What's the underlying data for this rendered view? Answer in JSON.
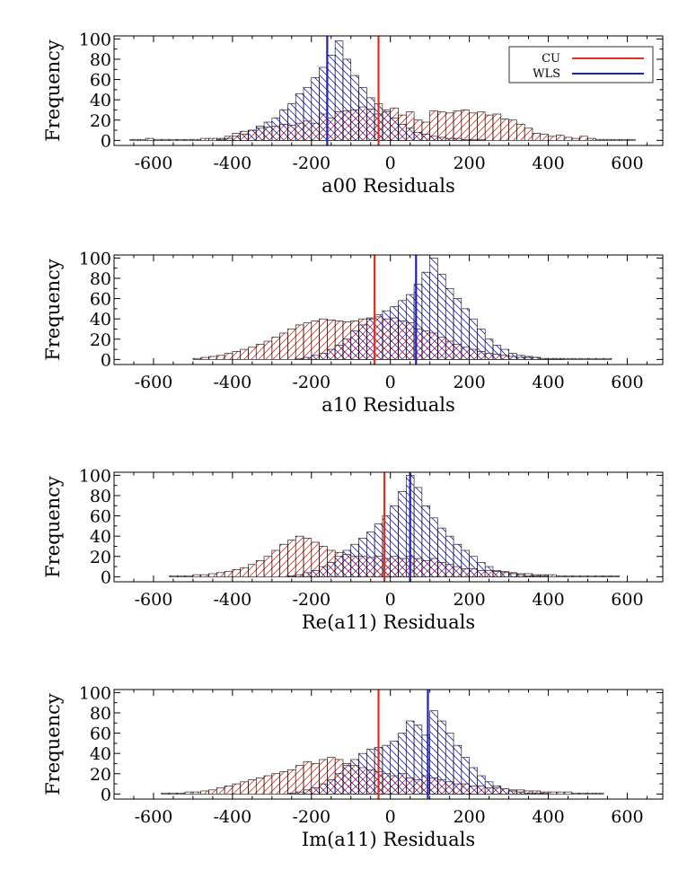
{
  "chart_data": [
    {
      "type": "bar",
      "xlabel": "a00 Residuals",
      "ylabel": "Frequency",
      "xlim": [
        -700,
        690
      ],
      "ylim": [
        -5,
        103
      ],
      "xticks": [
        -600,
        -400,
        -200,
        0,
        200,
        400,
        600
      ],
      "yticks": [
        0,
        20,
        40,
        60,
        80,
        100
      ],
      "bin_start": -660,
      "bin_width": 20,
      "legend": {
        "position": "top-right",
        "entries": [
          "CU",
          "WLS"
        ]
      },
      "series": [
        {
          "name": "CU",
          "color": "#e03020",
          "marker_x": -30,
          "values": [
            1,
            1,
            2,
            1,
            1,
            1,
            1,
            1,
            1,
            2,
            2,
            2,
            4,
            7,
            9,
            10,
            12,
            13,
            14,
            16,
            15,
            17,
            19,
            17,
            26,
            22,
            28,
            29,
            30,
            33,
            31,
            26,
            30,
            32,
            25,
            28,
            20,
            18,
            29,
            28,
            27,
            29,
            30,
            27,
            28,
            25,
            26,
            21,
            20,
            16,
            12,
            7,
            6,
            4,
            5,
            3,
            2,
            4,
            2,
            1,
            1,
            1,
            1,
            1,
            0,
            0
          ]
        },
        {
          "name": "WLS",
          "color": "#2020c0",
          "marker_x": -160,
          "values": [
            0,
            0,
            0,
            0,
            0,
            0,
            0,
            0,
            0,
            0,
            0,
            1,
            2,
            4,
            6,
            10,
            14,
            18,
            22,
            30,
            36,
            46,
            52,
            62,
            72,
            84,
            98,
            80,
            64,
            52,
            42,
            36,
            28,
            22,
            16,
            12,
            8,
            6,
            4,
            3,
            2,
            2,
            1,
            1,
            1,
            0,
            0,
            0,
            0,
            0,
            0,
            0,
            0,
            0,
            0,
            0,
            0,
            0,
            0,
            0,
            0,
            0,
            0,
            0,
            0,
            0
          ]
        }
      ]
    },
    {
      "type": "bar",
      "xlabel": "a10 Residuals",
      "ylabel": "Frequency",
      "xlim": [
        -700,
        690
      ],
      "ylim": [
        -5,
        103
      ],
      "xticks": [
        -600,
        -400,
        -200,
        0,
        200,
        400,
        600
      ],
      "yticks": [
        0,
        20,
        40,
        60,
        80,
        100
      ],
      "bin_start": -660,
      "bin_width": 20,
      "series": [
        {
          "name": "CU",
          "color": "#e03020",
          "marker_x": -40,
          "values": [
            0,
            0,
            0,
            0,
            0,
            0,
            0,
            0,
            1,
            2,
            3,
            4,
            6,
            8,
            10,
            12,
            15,
            18,
            22,
            26,
            30,
            34,
            36,
            38,
            40,
            39,
            38,
            37,
            38,
            40,
            41,
            42,
            40,
            41,
            38,
            36,
            30,
            28,
            26,
            22,
            18,
            15,
            12,
            10,
            8,
            6,
            5,
            4,
            3,
            2,
            2,
            2,
            1,
            1,
            1,
            1,
            1,
            1,
            1,
            1,
            1,
            0,
            0,
            0,
            0,
            0,
            0,
            0
          ]
        },
        {
          "name": "WLS",
          "color": "#2020c0",
          "marker_x": 65,
          "values": [
            0,
            0,
            0,
            0,
            0,
            0,
            0,
            0,
            0,
            0,
            0,
            0,
            0,
            0,
            0,
            0,
            0,
            0,
            0,
            0,
            0,
            1,
            2,
            4,
            6,
            10,
            14,
            20,
            28,
            34,
            40,
            44,
            48,
            52,
            58,
            64,
            74,
            86,
            100,
            84,
            70,
            60,
            50,
            40,
            30,
            20,
            14,
            10,
            6,
            4,
            3,
            2,
            1,
            1,
            1,
            0,
            0,
            0,
            0,
            0,
            0,
            0,
            0,
            0,
            0,
            0,
            0,
            0
          ]
        }
      ]
    },
    {
      "type": "bar",
      "xlabel": "Re(a11) Residuals",
      "ylabel": "Frequency",
      "xlim": [
        -700,
        690
      ],
      "ylim": [
        -5,
        103
      ],
      "xticks": [
        -600,
        -400,
        -200,
        0,
        200,
        400,
        600
      ],
      "yticks": [
        0,
        20,
        40,
        60,
        80,
        100
      ],
      "bin_start": -660,
      "bin_width": 20,
      "series": [
        {
          "name": "CU",
          "color": "#e03020",
          "marker_x": -15,
          "values": [
            0,
            0,
            0,
            0,
            0,
            1,
            1,
            1,
            2,
            2,
            3,
            4,
            5,
            7,
            9,
            12,
            16,
            20,
            26,
            32,
            36,
            40,
            38,
            34,
            30,
            26,
            24,
            22,
            20,
            20,
            19,
            20,
            18,
            20,
            18,
            20,
            18,
            16,
            18,
            14,
            12,
            10,
            8,
            8,
            6,
            6,
            5,
            5,
            4,
            3,
            3,
            2,
            2,
            2,
            1,
            1,
            1,
            1,
            1,
            1,
            1,
            1,
            0,
            0,
            0,
            0,
            0,
            0
          ]
        },
        {
          "name": "WLS",
          "color": "#2020c0",
          "marker_x": 50,
          "values": [
            0,
            0,
            0,
            0,
            0,
            0,
            0,
            0,
            0,
            0,
            0,
            0,
            0,
            0,
            0,
            0,
            0,
            0,
            0,
            0,
            1,
            2,
            4,
            6,
            10,
            14,
            20,
            26,
            32,
            38,
            44,
            52,
            60,
            70,
            84,
            100,
            88,
            70,
            58,
            48,
            40,
            32,
            26,
            20,
            14,
            10,
            6,
            4,
            3,
            2,
            1,
            1,
            1,
            0,
            0,
            0,
            0,
            0,
            0,
            0,
            0,
            0,
            0,
            0,
            0,
            0,
            0,
            0
          ]
        }
      ]
    },
    {
      "type": "bar",
      "xlabel": "Im(a11) Residuals",
      "ylabel": "Frequency",
      "xlim": [
        -700,
        690
      ],
      "ylim": [
        -5,
        103
      ],
      "xticks": [
        -600,
        -400,
        -200,
        0,
        200,
        400,
        600
      ],
      "yticks": [
        0,
        20,
        40,
        60,
        80,
        100
      ],
      "bin_start": -660,
      "bin_width": 20,
      "series": [
        {
          "name": "CU",
          "color": "#e03020",
          "marker_x": -30,
          "values": [
            0,
            0,
            0,
            0,
            1,
            1,
            1,
            2,
            2,
            3,
            4,
            6,
            8,
            10,
            12,
            14,
            16,
            18,
            20,
            22,
            24,
            28,
            32,
            30,
            34,
            36,
            34,
            30,
            28,
            26,
            24,
            22,
            20,
            18,
            20,
            16,
            14,
            18,
            16,
            14,
            12,
            10,
            10,
            8,
            8,
            6,
            6,
            5,
            4,
            4,
            3,
            3,
            2,
            2,
            2,
            2,
            1,
            1,
            1,
            1,
            0,
            0,
            0,
            0,
            0,
            0,
            0,
            0
          ]
        },
        {
          "name": "WLS",
          "color": "#2020c0",
          "marker_x": 95,
          "values": [
            0,
            0,
            0,
            0,
            0,
            0,
            0,
            0,
            0,
            0,
            0,
            0,
            0,
            0,
            0,
            0,
            0,
            0,
            0,
            0,
            1,
            2,
            4,
            6,
            10,
            14,
            20,
            28,
            34,
            40,
            44,
            46,
            48,
            52,
            60,
            72,
            68,
            58,
            82,
            72,
            60,
            48,
            36,
            26,
            18,
            12,
            8,
            5,
            3,
            2,
            1,
            1,
            1,
            0,
            0,
            0,
            0,
            0,
            0,
            0,
            0,
            0,
            0,
            0,
            0,
            0,
            0,
            0
          ]
        }
      ]
    }
  ]
}
